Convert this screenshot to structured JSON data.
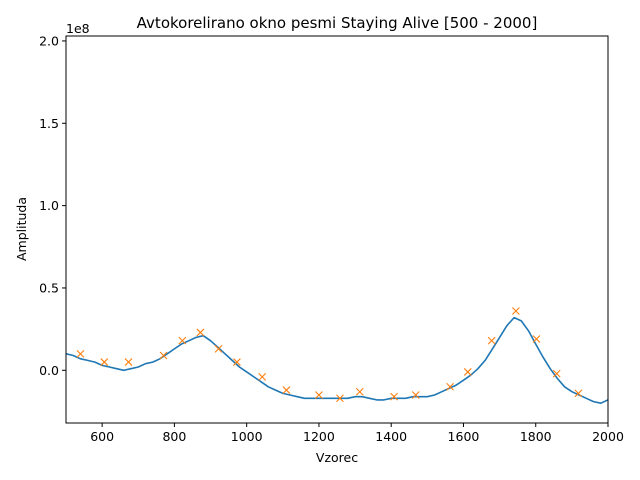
{
  "chart_data": {
    "type": "line",
    "title": "Avtokorelirano okno pesmi Staying Alive [500 - 2000]",
    "xlabel": "Vzorec",
    "ylabel": "Amplituda",
    "y_scale_label": "1e8",
    "xlim": [
      500,
      2000
    ],
    "ylim": [
      -0.32,
      2.03
    ],
    "x_ticks": [
      600,
      800,
      1000,
      1200,
      1400,
      1600,
      1800,
      2000
    ],
    "x_tick_labels": [
      "600",
      "800",
      "1000",
      "1200",
      "1400",
      "1600",
      "1800",
      "2000"
    ],
    "y_ticks": [
      0.0,
      0.5,
      1.0,
      1.5,
      2.0
    ],
    "y_tick_labels": [
      "0.0",
      "0.5",
      "1.0",
      "1.5",
      "2.0"
    ],
    "grid": false,
    "series": [
      {
        "color": "#1f77b4",
        "points": [
          [
            500,
            0.1
          ],
          [
            520,
            0.09
          ],
          [
            540,
            0.07
          ],
          [
            560,
            0.06
          ],
          [
            580,
            0.05
          ],
          [
            600,
            0.03
          ],
          [
            620,
            0.02
          ],
          [
            640,
            0.01
          ],
          [
            660,
            0.0
          ],
          [
            680,
            0.01
          ],
          [
            700,
            0.02
          ],
          [
            720,
            0.04
          ],
          [
            740,
            0.05
          ],
          [
            760,
            0.07
          ],
          [
            780,
            0.1
          ],
          [
            800,
            0.13
          ],
          [
            820,
            0.16
          ],
          [
            840,
            0.18
          ],
          [
            860,
            0.2
          ],
          [
            880,
            0.21
          ],
          [
            900,
            0.18
          ],
          [
            920,
            0.14
          ],
          [
            940,
            0.1
          ],
          [
            960,
            0.06
          ],
          [
            980,
            0.02
          ],
          [
            1000,
            -0.01
          ],
          [
            1020,
            -0.04
          ],
          [
            1040,
            -0.07
          ],
          [
            1060,
            -0.1
          ],
          [
            1080,
            -0.12
          ],
          [
            1100,
            -0.14
          ],
          [
            1120,
            -0.15
          ],
          [
            1140,
            -0.16
          ],
          [
            1160,
            -0.17
          ],
          [
            1180,
            -0.17
          ],
          [
            1200,
            -0.17
          ],
          [
            1220,
            -0.17
          ],
          [
            1240,
            -0.17
          ],
          [
            1260,
            -0.17
          ],
          [
            1280,
            -0.17
          ],
          [
            1300,
            -0.16
          ],
          [
            1320,
            -0.16
          ],
          [
            1340,
            -0.17
          ],
          [
            1360,
            -0.18
          ],
          [
            1380,
            -0.18
          ],
          [
            1400,
            -0.17
          ],
          [
            1420,
            -0.17
          ],
          [
            1440,
            -0.17
          ],
          [
            1460,
            -0.16
          ],
          [
            1480,
            -0.16
          ],
          [
            1500,
            -0.16
          ],
          [
            1520,
            -0.15
          ],
          [
            1540,
            -0.13
          ],
          [
            1560,
            -0.11
          ],
          [
            1580,
            -0.09
          ],
          [
            1600,
            -0.06
          ],
          [
            1620,
            -0.03
          ],
          [
            1640,
            0.01
          ],
          [
            1660,
            0.06
          ],
          [
            1680,
            0.13
          ],
          [
            1700,
            0.2
          ],
          [
            1720,
            0.27
          ],
          [
            1740,
            0.32
          ],
          [
            1760,
            0.3
          ],
          [
            1780,
            0.24
          ],
          [
            1800,
            0.16
          ],
          [
            1820,
            0.08
          ],
          [
            1840,
            0.01
          ],
          [
            1860,
            -0.05
          ],
          [
            1880,
            -0.1
          ],
          [
            1900,
            -0.13
          ],
          [
            1920,
            -0.15
          ],
          [
            1940,
            -0.17
          ],
          [
            1960,
            -0.19
          ],
          [
            1980,
            -0.2
          ],
          [
            2000,
            -0.18
          ]
        ]
      },
      {
        "color": "#ff7f0e",
        "marker": "x",
        "points": [
          [
            540,
            0.1
          ],
          [
            606,
            0.05
          ],
          [
            673,
            0.05
          ],
          [
            770,
            0.09
          ],
          [
            822,
            0.18
          ],
          [
            872,
            0.23
          ],
          [
            922,
            0.13
          ],
          [
            973,
            0.05
          ],
          [
            1043,
            -0.04
          ],
          [
            1110,
            -0.12
          ],
          [
            1200,
            -0.15
          ],
          [
            1258,
            -0.17
          ],
          [
            1313,
            -0.13
          ],
          [
            1408,
            -0.16
          ],
          [
            1468,
            -0.15
          ],
          [
            1563,
            -0.1
          ],
          [
            1612,
            -0.01
          ],
          [
            1678,
            0.18
          ],
          [
            1745,
            0.36
          ],
          [
            1802,
            0.19
          ],
          [
            1858,
            -0.02
          ],
          [
            1918,
            -0.14
          ]
        ]
      }
    ]
  }
}
